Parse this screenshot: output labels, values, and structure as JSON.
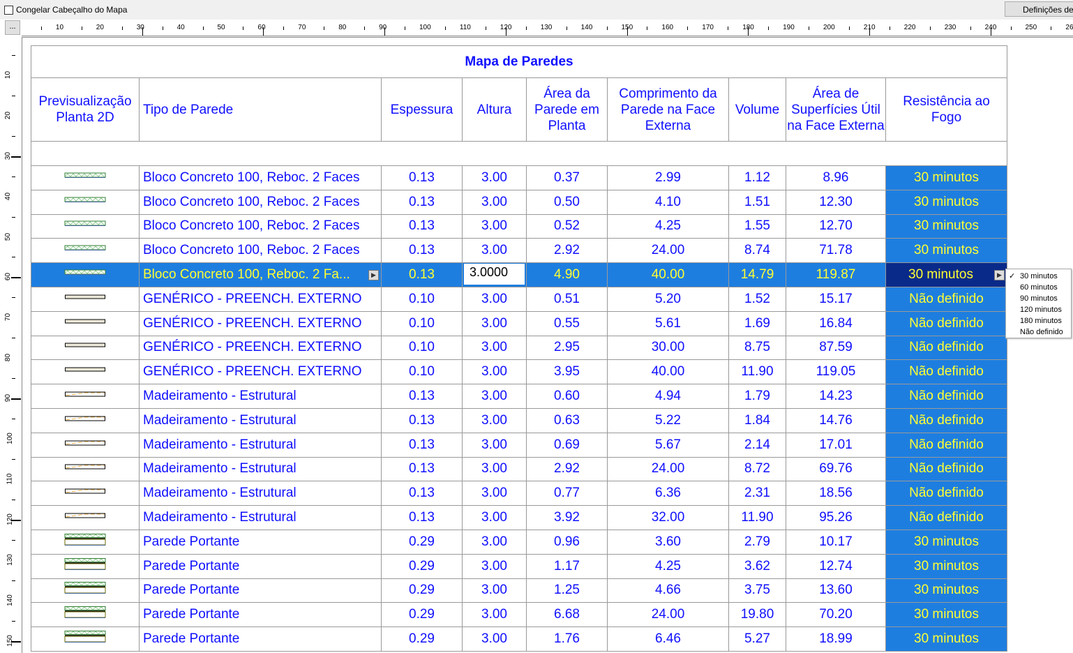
{
  "toolbar": {
    "freeze_label": "Congelar Cabeçalho do Mapa",
    "settings_label": "Definições de",
    "corner_label": "..."
  },
  "ruler": {
    "h_labels": [
      "10",
      "20",
      "30",
      "40",
      "50",
      "60",
      "70",
      "80",
      "90",
      "100",
      "110",
      "120",
      "130",
      "140",
      "150",
      "160",
      "170",
      "180",
      "190",
      "200",
      "210",
      "220",
      "230",
      "240",
      "250",
      "26"
    ],
    "v_labels": [
      "10",
      "20",
      "30",
      "40",
      "50",
      "60",
      "70",
      "80",
      "90",
      "100",
      "110",
      "120",
      "130",
      "140",
      "150"
    ]
  },
  "table": {
    "title": "Mapa de Paredes",
    "headers": [
      "Previsualização Planta 2D",
      "Tipo de Parede",
      "Espessura",
      "Altura",
      "Área da Parede em Planta",
      "Comprimento da Parede na Face Externa",
      "Volume",
      "Área de Superfícies Útil na Face Externa",
      "Resistência ao Fogo"
    ],
    "selected_row": 4,
    "editing_value": "3.0000",
    "rows": [
      {
        "preview": "bloco",
        "type": "Bloco Concreto 100, Reboc. 2 Faces",
        "esp": "0.13",
        "alt": "3.00",
        "area": "0.37",
        "comp": "2.99",
        "vol": "1.12",
        "sup": "8.96",
        "fogo": "30 minutos"
      },
      {
        "preview": "bloco",
        "type": "Bloco Concreto 100, Reboc. 2 Faces",
        "esp": "0.13",
        "alt": "3.00",
        "area": "0.50",
        "comp": "4.10",
        "vol": "1.51",
        "sup": "12.30",
        "fogo": "30 minutos"
      },
      {
        "preview": "bloco",
        "type": "Bloco Concreto 100, Reboc. 2 Faces",
        "esp": "0.13",
        "alt": "3.00",
        "area": "0.52",
        "comp": "4.25",
        "vol": "1.55",
        "sup": "12.70",
        "fogo": "30 minutos"
      },
      {
        "preview": "bloco",
        "type": "Bloco Concreto 100, Reboc. 2 Faces",
        "esp": "0.13",
        "alt": "3.00",
        "area": "2.92",
        "comp": "24.00",
        "vol": "8.74",
        "sup": "71.78",
        "fogo": "30 minutos"
      },
      {
        "preview": "bloco",
        "type": "Bloco Concreto 100, Reboc. 2 Fa...",
        "esp": "0.13",
        "alt": "3.0000",
        "area": "4.90",
        "comp": "40.00",
        "vol": "14.79",
        "sup": "119.87",
        "fogo": "30 minutos"
      },
      {
        "preview": "generico",
        "type": "GENÉRICO - PREENCH. EXTERNO",
        "esp": "0.10",
        "alt": "3.00",
        "area": "0.51",
        "comp": "5.20",
        "vol": "1.52",
        "sup": "15.17",
        "fogo": "Não definido"
      },
      {
        "preview": "generico",
        "type": "GENÉRICO - PREENCH. EXTERNO",
        "esp": "0.10",
        "alt": "3.00",
        "area": "0.55",
        "comp": "5.61",
        "vol": "1.69",
        "sup": "16.84",
        "fogo": "Não definido"
      },
      {
        "preview": "generico",
        "type": "GENÉRICO - PREENCH. EXTERNO",
        "esp": "0.10",
        "alt": "3.00",
        "area": "2.95",
        "comp": "30.00",
        "vol": "8.75",
        "sup": "87.59",
        "fogo": "Não definido"
      },
      {
        "preview": "generico",
        "type": "GENÉRICO - PREENCH. EXTERNO",
        "esp": "0.10",
        "alt": "3.00",
        "area": "3.95",
        "comp": "40.00",
        "vol": "11.90",
        "sup": "119.05",
        "fogo": "Não definido"
      },
      {
        "preview": "madeira",
        "type": "Madeiramento - Estrutural",
        "esp": "0.13",
        "alt": "3.00",
        "area": "0.60",
        "comp": "4.94",
        "vol": "1.79",
        "sup": "14.23",
        "fogo": "Não definido"
      },
      {
        "preview": "madeira",
        "type": "Madeiramento - Estrutural",
        "esp": "0.13",
        "alt": "3.00",
        "area": "0.63",
        "comp": "5.22",
        "vol": "1.84",
        "sup": "14.76",
        "fogo": "Não definido"
      },
      {
        "preview": "madeira",
        "type": "Madeiramento - Estrutural",
        "esp": "0.13",
        "alt": "3.00",
        "area": "0.69",
        "comp": "5.67",
        "vol": "2.14",
        "sup": "17.01",
        "fogo": "Não definido"
      },
      {
        "preview": "madeira",
        "type": "Madeiramento - Estrutural",
        "esp": "0.13",
        "alt": "3.00",
        "area": "2.92",
        "comp": "24.00",
        "vol": "8.72",
        "sup": "69.76",
        "fogo": "Não definido"
      },
      {
        "preview": "madeira",
        "type": "Madeiramento - Estrutural",
        "esp": "0.13",
        "alt": "3.00",
        "area": "0.77",
        "comp": "6.36",
        "vol": "2.31",
        "sup": "18.56",
        "fogo": "Não definido"
      },
      {
        "preview": "madeira",
        "type": "Madeiramento - Estrutural",
        "esp": "0.13",
        "alt": "3.00",
        "area": "3.92",
        "comp": "32.00",
        "vol": "11.90",
        "sup": "95.26",
        "fogo": "Não definido"
      },
      {
        "preview": "portante",
        "type": "Parede Portante",
        "esp": "0.29",
        "alt": "3.00",
        "area": "0.96",
        "comp": "3.60",
        "vol": "2.79",
        "sup": "10.17",
        "fogo": "30 minutos"
      },
      {
        "preview": "portante",
        "type": "Parede Portante",
        "esp": "0.29",
        "alt": "3.00",
        "area": "1.17",
        "comp": "4.25",
        "vol": "3.62",
        "sup": "12.74",
        "fogo": "30 minutos"
      },
      {
        "preview": "portante",
        "type": "Parede Portante",
        "esp": "0.29",
        "alt": "3.00",
        "area": "1.25",
        "comp": "4.66",
        "vol": "3.75",
        "sup": "13.60",
        "fogo": "30 minutos"
      },
      {
        "preview": "portante",
        "type": "Parede Portante",
        "esp": "0.29",
        "alt": "3.00",
        "area": "6.68",
        "comp": "24.00",
        "vol": "19.80",
        "sup": "70.20",
        "fogo": "30 minutos"
      },
      {
        "preview": "portante",
        "type": "Parede Portante",
        "esp": "0.29",
        "alt": "3.00",
        "area": "1.76",
        "comp": "6.46",
        "vol": "5.27",
        "sup": "18.99",
        "fogo": "30 minutos"
      }
    ]
  },
  "fire_dropdown": {
    "options": [
      "30 minutos",
      "60 minutos",
      "90 minutos",
      "120 minutos",
      "180 minutos",
      "Não definido"
    ],
    "checked": "30 minutos"
  },
  "colors": {
    "text": "#1010ff",
    "highlight": "#1e7ee0",
    "highlight_text": "#ffff33",
    "selected_cell": "#0a2a8a"
  }
}
